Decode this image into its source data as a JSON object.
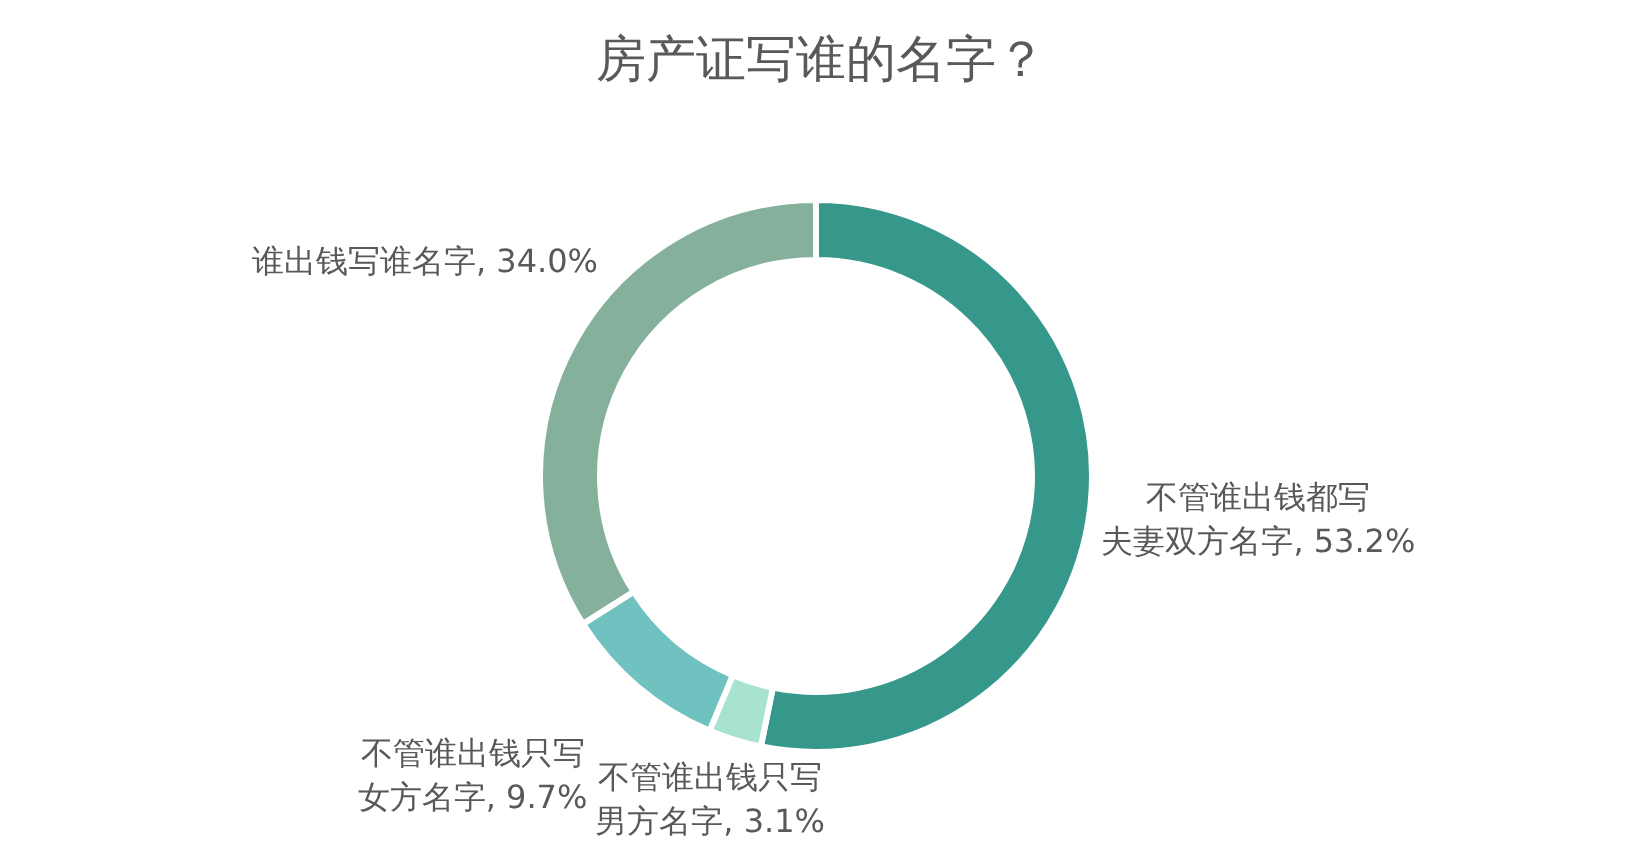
{
  "chart_data": {
    "type": "donut",
    "title": "房产证写谁的名字？",
    "categories": [
      "不管谁出钱都写夫妻双方名字",
      "不管谁出钱只写男方名字",
      "不管谁出钱只写女方名字",
      "谁出钱写谁名字"
    ],
    "values": [
      53.2,
      3.1,
      9.7,
      34.0
    ],
    "colors": [
      "#36978b",
      "#a8e2d0",
      "#6fc2c0",
      "#85b09c"
    ],
    "value_labels": [
      "53.2%",
      "3.1%",
      "9.7%",
      "34.0%"
    ]
  }
}
